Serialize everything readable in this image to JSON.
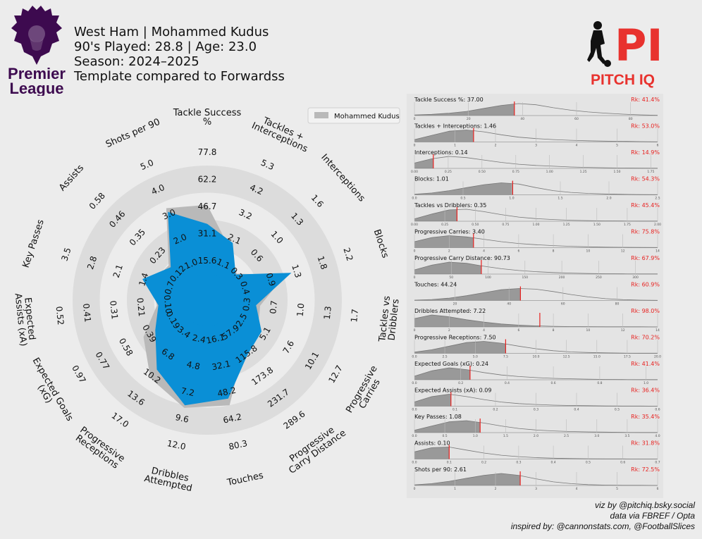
{
  "header": {
    "line1": "West Ham | Mohammed Kudus",
    "line2": "90's Played: 28.8 | Age: 23.0",
    "line3": "Season: 2024–2025",
    "line4": "Template compared to Forwardss",
    "league_logo_text": [
      "Premier",
      "League"
    ],
    "brand_logo_text": "PITCH IQ",
    "brand_mark": "PI"
  },
  "colors": {
    "player": "#0a8fd6",
    "comparison": "#b9b9b9",
    "ring": "#dcdcdc",
    "background": "#ececec",
    "rank": "#e8211f",
    "league_purple": "#3d0a4f",
    "brand_red": "#e8322e"
  },
  "icons": [
    "premier-league-lion-icon",
    "footballer-silhouette-icon"
  ],
  "chart_data": [
    {
      "type": "radar",
      "legend": {
        "label": "Mohammed Kudus",
        "placement": "top-right"
      },
      "axes": [
        {
          "label": "Tackle Success\n%",
          "ticks": [
            "15.6",
            "31.1",
            "46.7",
            "62.2",
            "77.8"
          ],
          "player_value_fraction": 0.37,
          "comparison_value_fraction": 0.51
        },
        {
          "label": "Tackles +\nInterceptions",
          "ticks": [
            "1.1",
            "2.1",
            "3.2",
            "4.2",
            "5.3"
          ],
          "player_value_fraction": 0.27,
          "comparison_value_fraction": 0.22
        },
        {
          "label": "Interceptions",
          "ticks": [
            "0.3",
            "0.6",
            "1.0",
            "1.3",
            "1.6"
          ],
          "player_value_fraction": 0.09,
          "comparison_value_fraction": 0.1
        },
        {
          "label": "Blocks",
          "ticks": [
            "0.4",
            "0.9",
            "1.3",
            "1.8",
            "2.2"
          ],
          "player_value_fraction": 0.46,
          "comparison_value_fraction": 0.41
        },
        {
          "label": "Tackles vs\nDribblers",
          "ticks": [
            "0.3",
            "0.7",
            "1.0",
            "1.3",
            "1.7"
          ],
          "player_value_fraction": 0.17,
          "comparison_value_fraction": 0.2
        },
        {
          "label": "Progressive\nCarries",
          "ticks": [
            "2.5",
            "5.1",
            "7.6",
            "10.1",
            "12.7"
          ],
          "player_value_fraction": 0.27,
          "comparison_value_fraction": 0.24
        },
        {
          "label": "Progressive\nCarry Distance",
          "ticks": [
            "57.9",
            "115.8",
            "173.8",
            "231.7",
            "289.6"
          ],
          "player_value_fraction": 0.31,
          "comparison_value_fraction": 0.26
        },
        {
          "label": "Touches",
          "ticks": [
            "16.1",
            "32.1",
            "48.2",
            "64.2",
            "80.3"
          ],
          "player_value_fraction": 0.55,
          "comparison_value_fraction": 0.6
        },
        {
          "label": "Dribbles\nAttempted",
          "ticks": [
            "2.4",
            "4.8",
            "7.2",
            "9.6",
            "12.0"
          ],
          "player_value_fraction": 0.6,
          "comparison_value_fraction": 0.62
        },
        {
          "label": "Progressive\nReceptions",
          "ticks": [
            "3.4",
            "6.8",
            "10.2",
            "13.6",
            "17.0"
          ],
          "player_value_fraction": 0.44,
          "comparison_value_fraction": 0.52
        },
        {
          "label": "Expected Goals\n(xG)",
          "ticks": [
            "0.19",
            "0.39",
            "0.58",
            "0.77",
            "0.97"
          ],
          "player_value_fraction": 0.25,
          "comparison_value_fraction": 0.35
        },
        {
          "label": "Expected\nAssists (xA)",
          "ticks": [
            "0.10",
            "0.21",
            "0.31",
            "0.41",
            "0.52"
          ],
          "player_value_fraction": 0.17,
          "comparison_value_fraction": 0.18
        },
        {
          "label": "Key Passes",
          "ticks": [
            "0.7",
            "1.4",
            "2.1",
            "2.8",
            "3.5"
          ],
          "player_value_fraction": 0.31,
          "comparison_value_fraction": 0.24
        },
        {
          "label": "Assists",
          "ticks": [
            "0.12",
            "0.23",
            "0.35",
            "0.46",
            "0.58"
          ],
          "player_value_fraction": 0.17,
          "comparison_value_fraction": 0.19
        },
        {
          "label": "Shots per 90",
          "ticks": [
            "1.0",
            "2.0",
            "3.0",
            "4.0",
            "5.0"
          ],
          "player_value_fraction": 0.52,
          "comparison_value_fraction": 0.55
        }
      ]
    },
    {
      "type": "area",
      "panels": [
        {
          "label": "Tackle Success %: 37.00",
          "rank": "Rk: 41.4%",
          "ticks": [
            "0",
            "20",
            "40",
            "60",
            "80"
          ],
          "xlim": [
            0,
            90
          ],
          "value": 37.0,
          "density": [
            0.05,
            0.1,
            0.2,
            0.35,
            0.6,
            0.85,
            1,
            0.9,
            0.65,
            0.45,
            0.3,
            0.2,
            0.12,
            0.06,
            0.02
          ]
        },
        {
          "label": "Tackles + Interceptions: 1.46",
          "rank": "Rk: 53.0%",
          "ticks": [
            "0",
            "1",
            "2",
            "3",
            "4",
            "5",
            "6"
          ],
          "xlim": [
            0,
            6
          ],
          "value": 1.46,
          "density": [
            0.2,
            0.55,
            0.9,
            1,
            0.85,
            0.6,
            0.4,
            0.28,
            0.2,
            0.14,
            0.1,
            0.07,
            0.05,
            0.03,
            0.01
          ]
        },
        {
          "label": "Interceptions: 0.14",
          "rank": "Rk: 14.9%",
          "ticks": [
            "0.00",
            "0.25",
            "0.50",
            "0.75",
            "1.00",
            "1.25",
            "1.50",
            "1.75"
          ],
          "xlim": [
            0,
            1.8
          ],
          "value": 0.14,
          "density": [
            0.45,
            0.8,
            1,
            0.9,
            0.7,
            0.5,
            0.35,
            0.25,
            0.18,
            0.12,
            0.08,
            0.05,
            0.03,
            0.02,
            0.01
          ]
        },
        {
          "label": "Blocks: 1.01",
          "rank": "Rk: 54.3%",
          "ticks": [
            "0.0",
            "0.5",
            "1.0",
            "1.5",
            "2.0",
            "2.5"
          ],
          "xlim": [
            0,
            2.5
          ],
          "value": 1.01,
          "density": [
            0.05,
            0.15,
            0.35,
            0.6,
            0.85,
            1,
            0.9,
            0.6,
            0.35,
            0.2,
            0.12,
            0.07,
            0.04,
            0.02,
            0.01
          ]
        },
        {
          "label": "Tackles vs Dribblers: 0.35",
          "rank": "Rk: 45.4%",
          "ticks": [
            "0.00",
            "0.25",
            "0.50",
            "0.75",
            "1.00",
            "1.25",
            "1.50",
            "1.75",
            "2.00"
          ],
          "xlim": [
            0,
            2.0
          ],
          "value": 0.35,
          "density": [
            0.2,
            0.6,
            0.95,
            1,
            0.8,
            0.55,
            0.35,
            0.22,
            0.14,
            0.08,
            0.05,
            0.03,
            0.02,
            0.01,
            0.01
          ]
        },
        {
          "label": "Progressive Carries: 3.40",
          "rank": "Rk: 75.8%",
          "ticks": [
            "0",
            "2",
            "4",
            "6",
            "8",
            "10",
            "12",
            "14"
          ],
          "xlim": [
            0,
            14
          ],
          "value": 3.4,
          "density": [
            0.5,
            0.85,
            1,
            0.9,
            0.7,
            0.5,
            0.35,
            0.25,
            0.17,
            0.11,
            0.07,
            0.04,
            0.03,
            0.02,
            0.01
          ]
        },
        {
          "label": "Progressive Carry Distance: 90.73",
          "rank": "Rk: 67.9%",
          "ticks": [
            "0",
            "50",
            "100",
            "150",
            "200",
            "250",
            "300"
          ],
          "xlim": [
            0,
            330
          ],
          "value": 90.73,
          "density": [
            0.35,
            0.75,
            1,
            0.9,
            0.65,
            0.45,
            0.3,
            0.2,
            0.13,
            0.08,
            0.05,
            0.03,
            0.02,
            0.01,
            0.01
          ]
        },
        {
          "label": "Touches: 44.24",
          "rank": "Rk: 60.9%",
          "ticks": [
            "20",
            "40",
            "60",
            "80"
          ],
          "xlim": [
            5,
            95
          ],
          "value": 44.24,
          "density": [
            0.03,
            0.08,
            0.2,
            0.4,
            0.65,
            0.9,
            1,
            0.95,
            0.75,
            0.5,
            0.3,
            0.15,
            0.07,
            0.03,
            0.01
          ]
        },
        {
          "label": "Dribbles Attempted: 7.22",
          "rank": "Rk: 98.0%",
          "ticks": [
            "0",
            "2",
            "4",
            "6",
            "8",
            "10",
            "12",
            "14"
          ],
          "xlim": [
            0,
            14
          ],
          "value": 7.22,
          "density": [
            0.7,
            1,
            0.85,
            0.6,
            0.4,
            0.25,
            0.15,
            0.09,
            0.05,
            0.03,
            0.02,
            0.01,
            0.01,
            0.01,
            0.0
          ]
        },
        {
          "label": "Progressive Receptions: 7.50",
          "rank": "Rk: 70.2%",
          "ticks": [
            "0.0",
            "2.5",
            "5.0",
            "7.5",
            "10.0",
            "12.5",
            "15.0",
            "17.5",
            "20.0"
          ],
          "xlim": [
            0,
            20
          ],
          "value": 7.5,
          "density": [
            0.1,
            0.3,
            0.6,
            0.9,
            1,
            0.85,
            0.6,
            0.38,
            0.22,
            0.12,
            0.07,
            0.04,
            0.02,
            0.01,
            0.01
          ]
        },
        {
          "label": "Expected Goals (xG): 0.24",
          "rank": "Rk: 41.4%",
          "ticks": [
            "0.0",
            "0.2",
            "0.4",
            "0.6",
            "0.8",
            "1.0"
          ],
          "xlim": [
            0,
            1.05
          ],
          "value": 0.24,
          "density": [
            0.3,
            0.75,
            1,
            0.85,
            0.6,
            0.4,
            0.27,
            0.18,
            0.12,
            0.08,
            0.05,
            0.03,
            0.02,
            0.01,
            0.01
          ]
        },
        {
          "label": "Expected Assists (xA): 0.09",
          "rank": "Rk: 36.4%",
          "ticks": [
            "0.0",
            "0.1",
            "0.2",
            "0.3",
            "0.4",
            "0.5",
            "0.6"
          ],
          "xlim": [
            0,
            0.6
          ],
          "value": 0.09,
          "density": [
            0.35,
            0.8,
            1,
            0.8,
            0.55,
            0.35,
            0.22,
            0.14,
            0.09,
            0.06,
            0.04,
            0.02,
            0.01,
            0.01,
            0.0
          ]
        },
        {
          "label": "Key Passes: 1.08",
          "rank": "Rk: 35.4%",
          "ticks": [
            "0.0",
            "0.5",
            "1.0",
            "1.5",
            "2.0",
            "2.5",
            "3.0",
            "3.5",
            "4.0"
          ],
          "xlim": [
            0,
            4
          ],
          "value": 1.08,
          "density": [
            0.2,
            0.55,
            0.9,
            1,
            0.8,
            0.55,
            0.35,
            0.22,
            0.14,
            0.09,
            0.06,
            0.04,
            0.02,
            0.01,
            0.01
          ]
        },
        {
          "label": "Assists: 0.10",
          "rank": "Rk: 31.8%",
          "ticks": [
            "0.0",
            "0.1",
            "0.2",
            "0.3",
            "0.4",
            "0.5",
            "0.6",
            "0.7"
          ],
          "xlim": [
            0,
            0.7
          ],
          "value": 0.1,
          "density": [
            0.6,
            0.95,
            1,
            0.75,
            0.5,
            0.32,
            0.2,
            0.12,
            0.07,
            0.04,
            0.02,
            0.01,
            0.01,
            0.0,
            0.0
          ]
        },
        {
          "label": "Shots per 90: 2.61",
          "rank": "Rk: 72.5%",
          "ticks": [
            "0",
            "1",
            "2",
            "3",
            "4",
            "5",
            "6"
          ],
          "xlim": [
            0,
            6
          ],
          "value": 2.61,
          "density": [
            0.05,
            0.15,
            0.35,
            0.6,
            0.85,
            1,
            0.85,
            0.55,
            0.3,
            0.15,
            0.07,
            0.03,
            0.01,
            0.01,
            0.0
          ]
        }
      ]
    }
  ],
  "credits": {
    "line1": "viz by @pitchiq.bsky.social",
    "line2": "data via FBREF / Opta",
    "line3": "inspired by: @cannonstats.com, @FootballSlices"
  }
}
